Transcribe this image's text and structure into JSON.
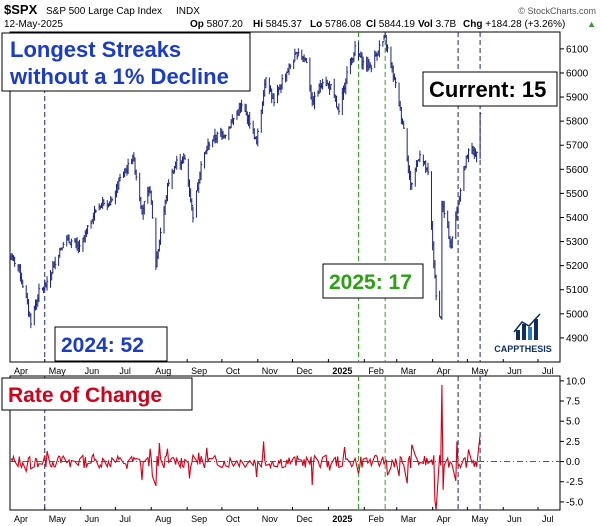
{
  "header": {
    "symbol": "$SPX",
    "name": "S&P 500 Large Cap Index",
    "exchange": "INDX",
    "date": "12-May-2025",
    "ohlc": {
      "op_label": "Op",
      "op": "5807.20",
      "hi_label": "Hi",
      "hi": "5845.37",
      "lo_label": "Lo",
      "lo": "5786.08",
      "cl_label": "Cl",
      "cl": "5844.19",
      "vol_label": "Vol",
      "vol": "3.7B",
      "chg_label": "Chg",
      "chg": "+184.28 (+3.26%)",
      "chg_arrow": "▲"
    },
    "watermark": "© StockCharts.com"
  },
  "annotations": {
    "title": "Longest Streaks\nwithout a 1% Decline",
    "current": "Current: 15",
    "streak_2025": "2025: 17",
    "streak_2024": "2024: 52",
    "roc_title": "Rate of Change"
  },
  "logo": {
    "text": "CAPPTHESIS"
  },
  "colors": {
    "price_bars": "#1a237e",
    "roc_line": "#d0021b",
    "blue_label": "#1a3cc8",
    "green_label": "#2aa012",
    "red_label": "#d0021b",
    "guide_navy": "#1b2a6b",
    "guide_green": "#3a9a2a"
  },
  "chart_data": [
    {
      "type": "line",
      "title": "$SPX S&P 500 Large Cap Index",
      "y_axis_ticks": [
        4900,
        5000,
        5100,
        5200,
        5300,
        5400,
        5500,
        5600,
        5700,
        5800,
        5900,
        6000,
        6100
      ],
      "ylim": [
        4800,
        6170
      ],
      "xlim": [
        "2024-04-01",
        "2025-07-20"
      ],
      "x_ticks": [
        "Apr",
        "May",
        "Jun",
        "Jul",
        "Aug",
        "Sep",
        "Oct",
        "Nov",
        "Dec",
        "2025",
        "Feb",
        "Mar",
        "Apr",
        "May",
        "Jun",
        "Jul"
      ],
      "x_tick_dates": [
        "2024-04-01",
        "2024-05-01",
        "2024-06-01",
        "2024-07-01",
        "2024-08-01",
        "2024-09-01",
        "2024-10-01",
        "2024-11-01",
        "2024-12-01",
        "2025-01-01",
        "2025-02-01",
        "2025-03-01",
        "2025-04-01",
        "2025-05-01",
        "2025-06-01",
        "2025-07-01"
      ],
      "series": [
        {
          "points": [
            [
              "2024-04-01",
              5240
            ],
            [
              "2024-04-08",
              5200
            ],
            [
              "2024-04-15",
              5060
            ],
            [
              "2024-04-19",
              4970
            ],
            [
              "2024-04-26",
              5090
            ],
            [
              "2024-05-03",
              5120
            ],
            [
              "2024-05-10",
              5220
            ],
            [
              "2024-05-17",
              5300
            ],
            [
              "2024-05-24",
              5300
            ],
            [
              "2024-05-31",
              5270
            ],
            [
              "2024-06-07",
              5350
            ],
            [
              "2024-06-14",
              5430
            ],
            [
              "2024-06-21",
              5470
            ],
            [
              "2024-06-28",
              5460
            ],
            [
              "2024-07-05",
              5560
            ],
            [
              "2024-07-12",
              5610
            ],
            [
              "2024-07-16",
              5660
            ],
            [
              "2024-07-24",
              5430
            ],
            [
              "2024-07-31",
              5520
            ],
            [
              "2024-08-05",
              5200
            ],
            [
              "2024-08-09",
              5340
            ],
            [
              "2024-08-16",
              5550
            ],
            [
              "2024-08-23",
              5630
            ],
            [
              "2024-08-30",
              5640
            ],
            [
              "2024-09-06",
              5410
            ],
            [
              "2024-09-13",
              5620
            ],
            [
              "2024-09-20",
              5710
            ],
            [
              "2024-09-27",
              5740
            ],
            [
              "2024-10-04",
              5750
            ],
            [
              "2024-10-11",
              5810
            ],
            [
              "2024-10-18",
              5860
            ],
            [
              "2024-10-25",
              5800
            ],
            [
              "2024-10-31",
              5710
            ],
            [
              "2024-11-08",
              5990
            ],
            [
              "2024-11-15",
              5870
            ],
            [
              "2024-11-22",
              5970
            ],
            [
              "2024-11-29",
              6030
            ],
            [
              "2024-12-06",
              6090
            ],
            [
              "2024-12-13",
              6050
            ],
            [
              "2024-12-18",
              5870
            ],
            [
              "2024-12-27",
              5970
            ],
            [
              "2025-01-03",
              5940
            ],
            [
              "2025-01-10",
              5830
            ],
            [
              "2025-01-17",
              6000
            ],
            [
              "2025-01-24",
              6100
            ],
            [
              "2025-01-31",
              6040
            ],
            [
              "2025-02-07",
              6030
            ],
            [
              "2025-02-14",
              6110
            ],
            [
              "2025-02-19",
              6140
            ],
            [
              "2025-02-28",
              5950
            ],
            [
              "2025-03-07",
              5770
            ],
            [
              "2025-03-13",
              5530
            ],
            [
              "2025-03-21",
              5670
            ],
            [
              "2025-03-28",
              5580
            ],
            [
              "2025-04-04",
              5070
            ],
            [
              "2025-04-08",
              4980
            ],
            [
              "2025-04-09",
              5460
            ],
            [
              "2025-04-17",
              5280
            ],
            [
              "2025-04-25",
              5520
            ],
            [
              "2025-05-02",
              5690
            ],
            [
              "2025-05-09",
              5660
            ],
            [
              "2025-05-12",
              5844
            ]
          ]
        }
      ]
    },
    {
      "type": "line",
      "title": "Rate of Change",
      "y_axis_ticks": [
        -5.0,
        -2.5,
        0.0,
        2.5,
        5.0,
        7.5,
        10.0
      ],
      "ylim": [
        -6,
        10.6
      ],
      "series": [
        {
          "points": [
            [
              "2024-04-15",
              -1.2
            ],
            [
              "2024-04-19",
              -0.9
            ],
            [
              "2024-05-03",
              1.3
            ],
            [
              "2024-05-23",
              -0.7
            ],
            [
              "2024-06-12",
              0.9
            ],
            [
              "2024-07-11",
              -0.9
            ],
            [
              "2024-07-24",
              -2.3
            ],
            [
              "2024-07-31",
              1.6
            ],
            [
              "2024-08-02",
              -1.8
            ],
            [
              "2024-08-05",
              -3.0
            ],
            [
              "2024-08-08",
              2.3
            ],
            [
              "2024-08-15",
              1.6
            ],
            [
              "2024-09-03",
              -2.1
            ],
            [
              "2024-09-11",
              1.1
            ],
            [
              "2024-09-18",
              1.7
            ],
            [
              "2024-10-31",
              -1.9
            ],
            [
              "2024-11-06",
              2.5
            ],
            [
              "2024-12-18",
              -2.9
            ],
            [
              "2025-01-02",
              -1.1
            ],
            [
              "2025-01-15",
              1.8
            ],
            [
              "2025-01-27",
              -1.5
            ],
            [
              "2025-02-21",
              -1.7
            ],
            [
              "2025-03-03",
              -1.8
            ],
            [
              "2025-03-10",
              -2.7
            ],
            [
              "2025-03-14",
              2.1
            ],
            [
              "2025-04-03",
              -4.8
            ],
            [
              "2025-04-04",
              -6.0
            ],
            [
              "2025-04-09",
              9.5
            ],
            [
              "2025-04-10",
              -3.5
            ],
            [
              "2025-04-21",
              -2.4
            ],
            [
              "2025-04-22",
              2.5
            ],
            [
              "2025-05-02",
              1.5
            ],
            [
              "2025-05-12",
              3.3
            ]
          ]
        }
      ]
    }
  ],
  "guides": {
    "navy": [
      "2024-05-01",
      "2025-04-23",
      "2025-05-12"
    ],
    "green": [
      "2025-01-27",
      "2025-02-19"
    ]
  }
}
